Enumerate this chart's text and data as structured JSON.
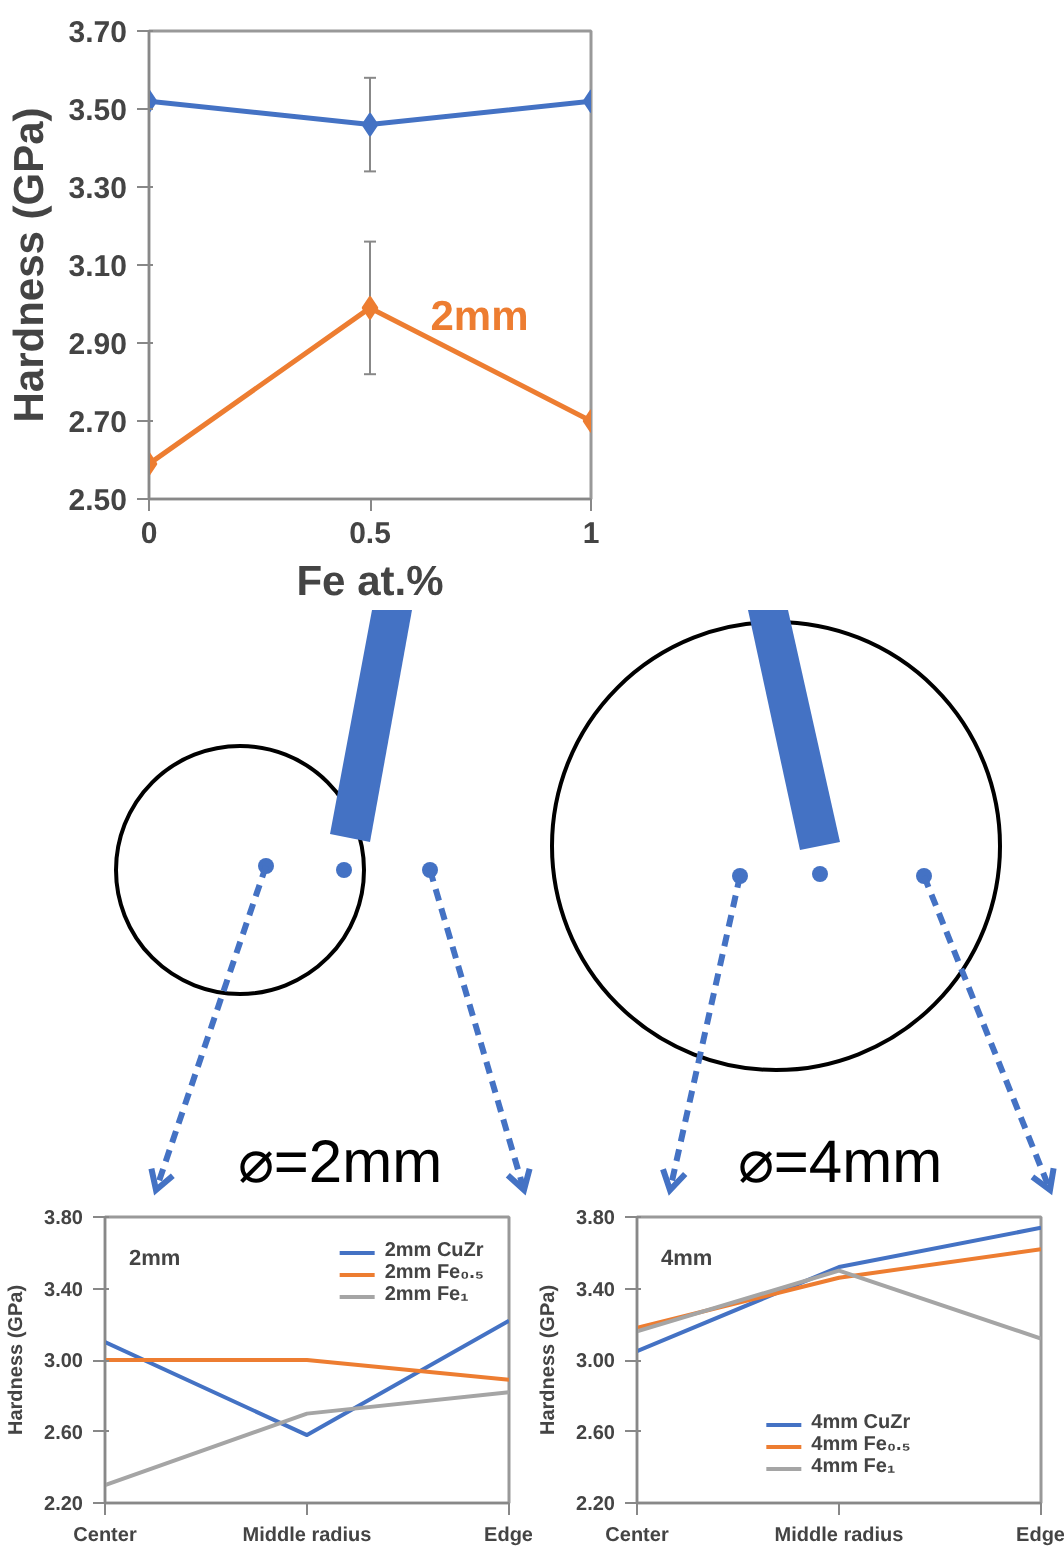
{
  "chart_data": [
    {
      "type": "line",
      "xlabel": "Fe at.%",
      "ylabel": "Hardness (GPa)",
      "x": [
        0,
        0.5,
        1
      ],
      "xlim": [
        0,
        1
      ],
      "xticks": [
        0,
        {
          "value": 0.5,
          "label": "0.5"
        },
        1
      ],
      "ylim": [
        2.5,
        3.7
      ],
      "yticks": [
        {
          "value": 2.5,
          "label": "2.50"
        },
        {
          "value": 2.7,
          "label": "2.70"
        },
        {
          "value": 2.9,
          "label": "2.90"
        },
        {
          "value": 3.1,
          "label": "3.10"
        },
        {
          "value": 3.3,
          "label": "3.30"
        },
        {
          "value": 3.5,
          "label": "3.50"
        },
        {
          "value": 3.7,
          "label": "3.70"
        }
      ],
      "marker": "diamond",
      "grid": false,
      "legend": false,
      "series": [
        {
          "color": "#4472c4",
          "values": [
            3.52,
            3.46,
            3.52
          ],
          "errors": [
            null,
            0.12,
            null
          ]
        },
        {
          "name": "2mm",
          "color": "#ed7d31",
          "values": [
            2.59,
            2.99,
            2.7
          ],
          "errors": [
            null,
            0.17,
            null
          ]
        }
      ]
    },
    {
      "type": "other",
      "annotations": [
        "⌀=2mm",
        "⌀=4mm"
      ]
    },
    {
      "type": "line",
      "ylabel": "Hardness (GPa)",
      "categories": [
        "Center",
        "Middle radius",
        "Edge"
      ],
      "ylim": [
        2.2,
        3.8
      ],
      "yticks": [
        {
          "value": 2.2,
          "label": "2.20"
        },
        {
          "value": 2.6,
          "label": "2.60"
        },
        {
          "value": 3.0,
          "label": "3.00"
        },
        {
          "value": 3.4,
          "label": "3.40"
        },
        {
          "value": 3.8,
          "label": "3.80"
        }
      ],
      "grid": false,
      "legend": "top right",
      "annotations": [
        "2mm"
      ],
      "series": [
        {
          "name": "2mm CuZr",
          "color": "#4472c4",
          "values": [
            3.1,
            2.58,
            3.22
          ]
        },
        {
          "name": "2mm Fe₀.₅",
          "color": "#ed7d31",
          "values": [
            3.0,
            3.0,
            2.89
          ]
        },
        {
          "name": "2mm Fe₁",
          "color": "#a5a5a5",
          "values": [
            2.3,
            2.7,
            2.82
          ]
        }
      ]
    },
    {
      "type": "line",
      "ylabel": "Hardness (GPa)",
      "categories": [
        "Center",
        "Middle radius",
        "Edge"
      ],
      "ylim": [
        2.2,
        3.8
      ],
      "yticks": [
        {
          "value": 2.2,
          "label": "2.20"
        },
        {
          "value": 2.6,
          "label": "2.60"
        },
        {
          "value": 3.0,
          "label": "3.00"
        },
        {
          "value": 3.4,
          "label": "3.40"
        },
        {
          "value": 3.8,
          "label": "3.80"
        }
      ],
      "grid": false,
      "legend": "bottom",
      "annotations": [
        "4mm"
      ],
      "series": [
        {
          "name": "4mm CuZr",
          "color": "#4472c4",
          "values": [
            3.05,
            3.52,
            3.74
          ]
        },
        {
          "name": "4mm Fe₀.₅",
          "color": "#ed7d31",
          "values": [
            3.18,
            3.46,
            3.62
          ]
        },
        {
          "name": "4mm Fe₁",
          "color": "#a5a5a5",
          "values": [
            3.16,
            3.5,
            3.12
          ]
        }
      ]
    }
  ]
}
